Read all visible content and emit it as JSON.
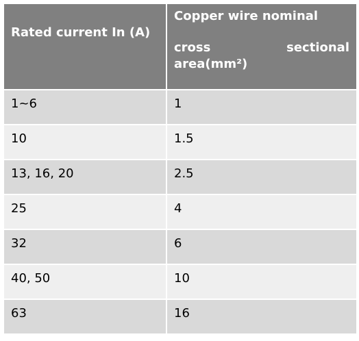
{
  "table": {
    "headers": {
      "col1": "Rated current In (A)",
      "col2_line1": "Copper wire nominal",
      "col2_line2": "cross sectional",
      "col2_line3": "area(mm²)"
    },
    "rows": [
      {
        "current": "1~6",
        "area": "1"
      },
      {
        "current": "10",
        "area": "1.5"
      },
      {
        "current": "13, 16, 20",
        "area": "2.5"
      },
      {
        "current": "25",
        "area": "4"
      },
      {
        "current": "32",
        "area": "6"
      },
      {
        "current": "40, 50",
        "area": "10"
      },
      {
        "current": "63",
        "area": "16"
      }
    ]
  },
  "colors": {
    "header_bg": "#808080",
    "row_dark": "#d9d9d9",
    "row_light": "#efefef"
  }
}
